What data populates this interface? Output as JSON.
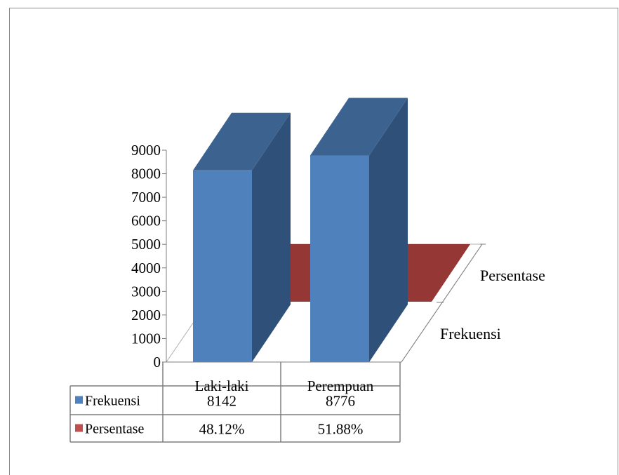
{
  "chart_data": {
    "type": "bar",
    "style": "3d-column",
    "categories": [
      "Laki-laki",
      "Perempuan"
    ],
    "series": [
      {
        "name": "Frekuensi",
        "values": [
          8142,
          8776
        ],
        "labels": [
          "8142",
          "8776"
        ],
        "color": "#4f81bd",
        "top_color": "#3c6290",
        "side_color": "#2f5079"
      },
      {
        "name": "Persentase",
        "values": [
          48.12,
          51.88
        ],
        "labels": [
          "48.12%",
          "51.88%"
        ],
        "color": "#c0504d",
        "top_color": "#953735",
        "side_color": "#7a2e2c"
      }
    ],
    "ylim": [
      0,
      9000
    ],
    "yticks": [
      "0",
      "1000",
      "2000",
      "3000",
      "4000",
      "5000",
      "6000",
      "7000",
      "8000",
      "9000"
    ],
    "depth_labels": [
      "Frekuensi",
      "Persentase"
    ],
    "grid": false,
    "legend": "data-table"
  },
  "colors": {
    "frame": "#8a8a8a",
    "axis": "#7f7f7f",
    "table_border": "#7f7f7f"
  }
}
